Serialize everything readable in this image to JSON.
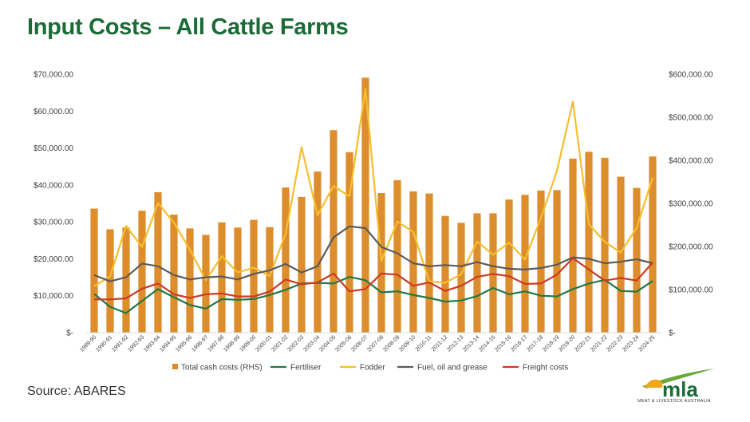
{
  "title": "Input Costs – All Cattle Farms",
  "source": "Source: ABARES",
  "logo": {
    "text": "mla",
    "tagline": "MEAT & LIVESTOCK AUSTRALIA"
  },
  "colors": {
    "title": "#1b6b36",
    "total_cash": "#dd8d2c",
    "fertiliser": "#1e7a45",
    "fodder": "#f7be2b",
    "fuel": "#5b5b5b",
    "freight": "#cc3a22"
  },
  "chart_data": {
    "type": "bar",
    "title": "",
    "grid": false,
    "legend_position": "bottom",
    "categories": [
      "1989-90",
      "1990-91",
      "1991-92",
      "1992-93",
      "1993-94",
      "1994-95",
      "1995-96",
      "1996-97",
      "1997-98",
      "1998-99",
      "1999-00",
      "2000-01",
      "2001-02",
      "2002-03",
      "2003-04",
      "2004-05",
      "2005-06",
      "2006-07",
      "2007-08",
      "2008-09",
      "2009-10",
      "2010-11",
      "2011-12",
      "2012-13",
      "2013-14",
      "2014-15",
      "2015-16",
      "2016-17",
      "2017-18",
      "2018-19",
      "2019-20",
      "2020-21",
      "2021-22",
      "2022-23",
      "2023-24",
      "2024-25"
    ],
    "y_left": {
      "ticks": [
        "$-",
        "$10,000.00",
        "$20,000.00",
        "$30,000.00",
        "$40,000.00",
        "$50,000.00",
        "$60,000.00",
        "$70,000.00"
      ],
      "min": 0,
      "max": 70000
    },
    "y_right": {
      "ticks": [
        "$-",
        "$100,000.00",
        "$200,000.00",
        "$300,000.00",
        "$400,000.00",
        "$500,000.00",
        "$600,000.00"
      ],
      "min": 0,
      "max": 600000
    },
    "series": [
      {
        "name": "Total cash costs (RHS)",
        "type": "bar",
        "axis": "right",
        "color": "#dd8d2c",
        "values": [
          288000,
          240000,
          244000,
          283000,
          326000,
          274000,
          242000,
          227000,
          256000,
          244000,
          262000,
          245000,
          337000,
          315000,
          374000,
          470000,
          419000,
          592000,
          324000,
          354000,
          328000,
          323000,
          271000,
          255000,
          277000,
          277000,
          309000,
          320000,
          330000,
          331000,
          404000,
          420000,
          406000,
          362000,
          336000,
          409000
        ]
      },
      {
        "name": "Fertiliser",
        "type": "line",
        "axis": "left",
        "color": "#1e7a45",
        "values": [
          10500,
          7000,
          5300,
          8600,
          11800,
          9600,
          7500,
          6500,
          9100,
          8900,
          9100,
          10200,
          11600,
          13300,
          13500,
          13300,
          15100,
          14200,
          10900,
          11200,
          10200,
          9400,
          8400,
          8700,
          9900,
          12100,
          10400,
          11200,
          10000,
          9800,
          11800,
          13300,
          14300,
          11300,
          11100,
          14000
        ]
      },
      {
        "name": "Fodder",
        "type": "line",
        "axis": "left",
        "color": "#f7be2b",
        "values": [
          12600,
          15200,
          28900,
          23200,
          35100,
          29800,
          22500,
          14200,
          20700,
          16300,
          17600,
          15300,
          26800,
          50200,
          31800,
          39700,
          36900,
          66000,
          19400,
          30100,
          27300,
          13900,
          13500,
          15800,
          24700,
          21100,
          24400,
          19800,
          31100,
          43800,
          62600,
          29400,
          24600,
          21700,
          28400,
          42000
        ]
      },
      {
        "name": "Fuel, oil and grease",
        "type": "line",
        "axis": "left",
        "color": "#5b5b5b",
        "values": [
          15600,
          13900,
          15000,
          18700,
          18000,
          15600,
          14400,
          15000,
          15200,
          14400,
          15900,
          16900,
          18600,
          16300,
          18000,
          25800,
          28800,
          28300,
          23200,
          21500,
          18800,
          18000,
          18300,
          18000,
          19100,
          18000,
          17300,
          17100,
          17500,
          18400,
          20400,
          20000,
          18800,
          19200,
          19900,
          18800
        ]
      },
      {
        "name": "Freight costs",
        "type": "line",
        "axis": "left",
        "color": "#cc3a22",
        "values": [
          9000,
          9000,
          9300,
          11900,
          13300,
          10400,
          9400,
          10400,
          10600,
          9800,
          9800,
          11100,
          14400,
          13100,
          13600,
          16000,
          11200,
          11800,
          16000,
          15700,
          12700,
          13600,
          11300,
          12700,
          15100,
          15900,
          15300,
          13200,
          13300,
          15700,
          20200,
          17100,
          14100,
          14800,
          14100,
          19000
        ]
      }
    ]
  }
}
